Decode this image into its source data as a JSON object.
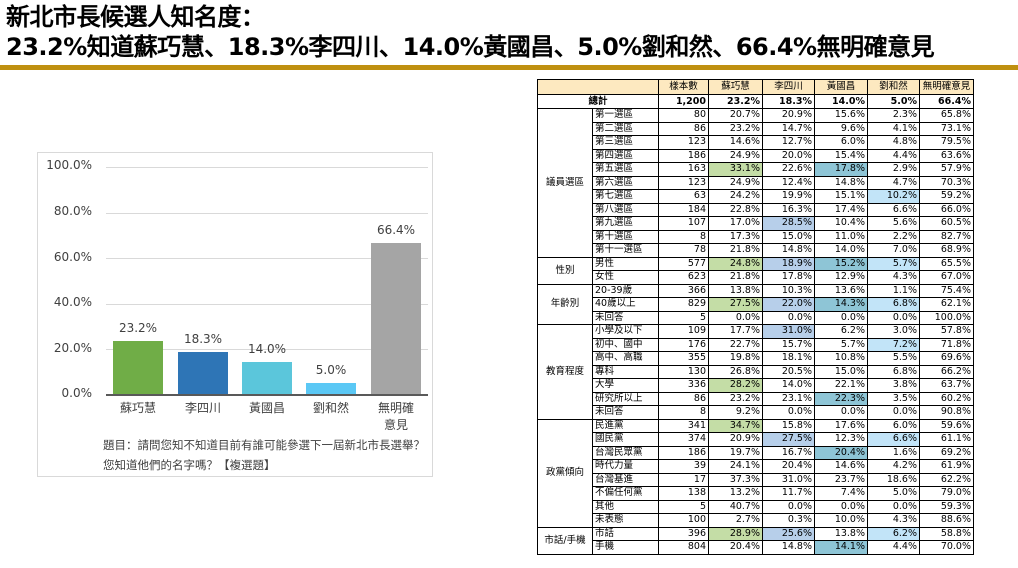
{
  "header": {
    "title_line1": "新北市長候選人知名度：",
    "title_line2": "23.2%知道蘇巧慧、18.3%李四川、14.0%黃國昌、5.0%劉和然、66.4%無明確意見",
    "rule_color": "#BF9010"
  },
  "chart_data": {
    "type": "bar",
    "title": "",
    "categories": [
      "蘇巧慧",
      "李四川",
      "黃國昌",
      "劉和然",
      "無明確意見"
    ],
    "category_lines": [
      [
        "蘇巧慧"
      ],
      [
        "李四川"
      ],
      [
        "黃國昌"
      ],
      [
        "劉和然"
      ],
      [
        "無明確",
        "意見"
      ]
    ],
    "values": [
      23.2,
      18.3,
      14.0,
      5.0,
      66.4
    ],
    "value_labels": [
      "23.2%",
      "18.3%",
      "14.0%",
      "5.0%",
      "66.4%"
    ],
    "colors": [
      "#70AD47",
      "#2E75B6",
      "#5BC6DB",
      "#5BC8F5",
      "#A5A5A5"
    ],
    "yticks": [
      "100.0%",
      "80.0%",
      "60.0%",
      "40.0%",
      "20.0%",
      "0.0%"
    ],
    "ylim": [
      0,
      100
    ],
    "xlabel": "",
    "ylabel": "",
    "grid": true,
    "legend": "none",
    "note_line1": "題目：請問您知不知道目前有誰可能參選下一屆新北市長選舉？",
    "note_line2": "您知道他們的名字嗎？【複選題】"
  },
  "table": {
    "columns": [
      "樣本數",
      "蘇巧慧",
      "李四川",
      "黃國昌",
      "劉和然",
      "無明確意見"
    ],
    "total": {
      "label": "總計",
      "values": [
        "1,200",
        "23.2%",
        "18.3%",
        "14.0%",
        "5.0%",
        "66.4%"
      ]
    },
    "groups": [
      {
        "label": "議員選區",
        "rows": [
          {
            "label": "第一選區",
            "values": [
              "80",
              "20.7%",
              "20.9%",
              "15.6%",
              "2.3%",
              "65.8%"
            ],
            "hl": [
              "",
              "",
              "",
              "",
              "",
              ""
            ]
          },
          {
            "label": "第二選區",
            "values": [
              "86",
              "23.2%",
              "14.7%",
              "9.6%",
              "4.1%",
              "73.1%"
            ],
            "hl": [
              "",
              "",
              "",
              "",
              "",
              ""
            ]
          },
          {
            "label": "第三選區",
            "values": [
              "123",
              "14.6%",
              "12.7%",
              "6.0%",
              "4.8%",
              "79.5%"
            ],
            "hl": [
              "",
              "",
              "",
              "",
              "",
              ""
            ]
          },
          {
            "label": "第四選區",
            "values": [
              "186",
              "24.9%",
              "20.0%",
              "15.4%",
              "4.4%",
              "63.6%"
            ],
            "hl": [
              "",
              "",
              "",
              "",
              "",
              ""
            ]
          },
          {
            "label": "第五選區",
            "values": [
              "163",
              "33.1%",
              "22.6%",
              "17.8%",
              "2.9%",
              "57.9%"
            ],
            "hl": [
              "",
              "green",
              "",
              "teal",
              "",
              ""
            ]
          },
          {
            "label": "第六選區",
            "values": [
              "123",
              "24.9%",
              "12.4%",
              "14.8%",
              "4.7%",
              "70.3%"
            ],
            "hl": [
              "",
              "",
              "",
              "",
              "",
              ""
            ]
          },
          {
            "label": "第七選區",
            "values": [
              "63",
              "24.2%",
              "19.9%",
              "15.1%",
              "10.2%",
              "59.2%"
            ],
            "hl": [
              "",
              "",
              "",
              "",
              "light",
              ""
            ]
          },
          {
            "label": "第八選區",
            "values": [
              "184",
              "22.8%",
              "16.3%",
              "17.4%",
              "6.6%",
              "66.0%"
            ],
            "hl": [
              "",
              "",
              "",
              "",
              "",
              ""
            ]
          },
          {
            "label": "第九選區",
            "values": [
              "107",
              "17.0%",
              "28.5%",
              "10.4%",
              "5.6%",
              "60.5%"
            ],
            "hl": [
              "",
              "",
              "blue",
              "",
              "",
              ""
            ]
          },
          {
            "label": "第十選區",
            "values": [
              "8",
              "17.3%",
              "15.0%",
              "11.0%",
              "2.2%",
              "82.7%"
            ],
            "hl": [
              "",
              "",
              "",
              "",
              "",
              ""
            ]
          },
          {
            "label": "第十一選區",
            "values": [
              "78",
              "21.8%",
              "14.8%",
              "14.0%",
              "7.0%",
              "68.9%"
            ],
            "hl": [
              "",
              "",
              "",
              "",
              "",
              ""
            ]
          }
        ]
      },
      {
        "label": "性別",
        "rows": [
          {
            "label": "男性",
            "values": [
              "577",
              "24.8%",
              "18.9%",
              "15.2%",
              "5.7%",
              "65.5%"
            ],
            "hl": [
              "",
              "green",
              "blue",
              "teal",
              "light",
              ""
            ]
          },
          {
            "label": "女性",
            "values": [
              "623",
              "21.8%",
              "17.8%",
              "12.9%",
              "4.3%",
              "67.0%"
            ],
            "hl": [
              "",
              "",
              "",
              "",
              "",
              ""
            ]
          }
        ]
      },
      {
        "label": "年齡別",
        "rows": [
          {
            "label": "20-39歲",
            "values": [
              "366",
              "13.8%",
              "10.3%",
              "13.6%",
              "1.1%",
              "75.4%"
            ],
            "hl": [
              "",
              "",
              "",
              "",
              "",
              ""
            ]
          },
          {
            "label": "40歲以上",
            "values": [
              "829",
              "27.5%",
              "22.0%",
              "14.3%",
              "6.8%",
              "62.1%"
            ],
            "hl": [
              "",
              "green",
              "blue",
              "teal",
              "light",
              ""
            ]
          },
          {
            "label": "未回答",
            "values": [
              "5",
              "0.0%",
              "0.0%",
              "0.0%",
              "0.0%",
              "100.0%"
            ],
            "hl": [
              "",
              "",
              "",
              "",
              "",
              ""
            ]
          }
        ]
      },
      {
        "label": "教育程度",
        "rows": [
          {
            "label": "小學及以下",
            "values": [
              "109",
              "17.7%",
              "31.0%",
              "6.2%",
              "3.0%",
              "57.8%"
            ],
            "hl": [
              "",
              "",
              "blue",
              "",
              "",
              ""
            ]
          },
          {
            "label": "初中、國中",
            "values": [
              "176",
              "22.7%",
              "15.7%",
              "5.7%",
              "7.2%",
              "71.8%"
            ],
            "hl": [
              "",
              "",
              "",
              "",
              "light",
              ""
            ]
          },
          {
            "label": "高中、高職",
            "values": [
              "355",
              "19.8%",
              "18.1%",
              "10.8%",
              "5.5%",
              "69.6%"
            ],
            "hl": [
              "",
              "",
              "",
              "",
              "",
              ""
            ]
          },
          {
            "label": "專科",
            "values": [
              "130",
              "26.8%",
              "20.5%",
              "15.0%",
              "6.8%",
              "66.2%"
            ],
            "hl": [
              "",
              "",
              "",
              "",
              "",
              ""
            ]
          },
          {
            "label": "大學",
            "values": [
              "336",
              "28.2%",
              "14.0%",
              "22.1%",
              "3.8%",
              "63.7%"
            ],
            "hl": [
              "",
              "green",
              "",
              "",
              "",
              ""
            ]
          },
          {
            "label": "研究所以上",
            "values": [
              "86",
              "23.2%",
              "23.1%",
              "22.3%",
              "3.5%",
              "60.2%"
            ],
            "hl": [
              "",
              "",
              "",
              "teal",
              "",
              ""
            ]
          },
          {
            "label": "未回答",
            "values": [
              "8",
              "9.2%",
              "0.0%",
              "0.0%",
              "0.0%",
              "90.8%"
            ],
            "hl": [
              "",
              "",
              "",
              "",
              "",
              ""
            ]
          }
        ]
      },
      {
        "label": "政黨傾向",
        "rows": [
          {
            "label": "民進黨",
            "values": [
              "341",
              "34.7%",
              "15.8%",
              "17.6%",
              "6.0%",
              "59.6%"
            ],
            "hl": [
              "",
              "green",
              "",
              "",
              "",
              ""
            ]
          },
          {
            "label": "國民黨",
            "values": [
              "374",
              "20.9%",
              "27.5%",
              "12.3%",
              "6.6%",
              "61.1%"
            ],
            "hl": [
              "",
              "",
              "blue",
              "",
              "light",
              ""
            ]
          },
          {
            "label": "台灣民眾黨",
            "values": [
              "186",
              "19.7%",
              "16.7%",
              "20.4%",
              "1.6%",
              "69.2%"
            ],
            "hl": [
              "",
              "",
              "",
              "teal",
              "",
              ""
            ]
          },
          {
            "label": "時代力量",
            "values": [
              "39",
              "24.1%",
              "20.4%",
              "14.6%",
              "4.2%",
              "61.9%"
            ],
            "hl": [
              "",
              "",
              "",
              "",
              "",
              ""
            ]
          },
          {
            "label": "台灣基進",
            "values": [
              "17",
              "37.3%",
              "31.0%",
              "23.7%",
              "18.6%",
              "62.2%"
            ],
            "hl": [
              "",
              "",
              "",
              "",
              "",
              ""
            ]
          },
          {
            "label": "不偏任何黨",
            "values": [
              "138",
              "13.2%",
              "11.7%",
              "7.4%",
              "5.0%",
              "79.0%"
            ],
            "hl": [
              "",
              "",
              "",
              "",
              "",
              ""
            ]
          },
          {
            "label": "其他",
            "values": [
              "5",
              "40.7%",
              "0.0%",
              "0.0%",
              "0.0%",
              "59.3%"
            ],
            "hl": [
              "",
              "",
              "",
              "",
              "",
              ""
            ]
          },
          {
            "label": "未表態",
            "values": [
              "100",
              "2.7%",
              "0.3%",
              "10.0%",
              "4.3%",
              "88.6%"
            ],
            "hl": [
              "",
              "",
              "",
              "",
              "",
              ""
            ]
          }
        ]
      },
      {
        "label": "市話/手機",
        "rows": [
          {
            "label": "市話",
            "values": [
              "396",
              "28.9%",
              "25.6%",
              "13.8%",
              "6.2%",
              "58.8%"
            ],
            "hl": [
              "",
              "green",
              "blue",
              "",
              "light",
              ""
            ]
          },
          {
            "label": "手機",
            "values": [
              "804",
              "20.4%",
              "14.8%",
              "14.1%",
              "4.4%",
              "70.0%"
            ],
            "hl": [
              "",
              "",
              "",
              "teal",
              "",
              ""
            ]
          }
        ]
      }
    ]
  }
}
